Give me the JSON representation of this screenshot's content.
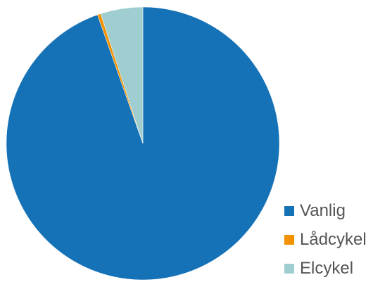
{
  "chart_data": {
    "type": "pie",
    "categories": [
      "Vanlig",
      "Lådcykel",
      "Elcykel"
    ],
    "values": [
      94.6,
      0.4,
      5.0
    ],
    "colors": [
      "#1572B6",
      "#F39200",
      "#A0CED0"
    ],
    "title": "",
    "legend_placement": "bottom-right"
  },
  "legend": {
    "items": [
      {
        "label": "Vanlig",
        "color": "#1572B6"
      },
      {
        "label": "Lådcykel",
        "color": "#F39200"
      },
      {
        "label": "Elcykel",
        "color": "#A0CED0"
      }
    ]
  }
}
